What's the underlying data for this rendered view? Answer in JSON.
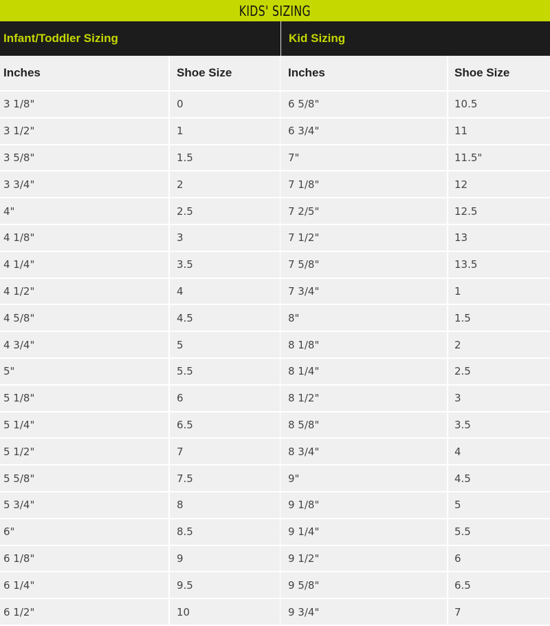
{
  "title": "KIDS' SIZING",
  "sections": {
    "left": "Infant/Toddler Sizing",
    "right": "Kid Sizing"
  },
  "columns": [
    "Inches",
    "Shoe Size",
    "Inches",
    "Shoe Size"
  ],
  "rows": [
    [
      "3 1/8\"",
      "0",
      "6 5/8\"",
      "10.5"
    ],
    [
      "3 1/2\"",
      "1",
      "6 3/4\"",
      "11"
    ],
    [
      "3 5/8\"",
      "1.5",
      "7\"",
      "11.5\""
    ],
    [
      "3 3/4\"",
      "2",
      "7 1/8\"",
      "12"
    ],
    [
      "4\"",
      "2.5",
      "7 2/5\"",
      "12.5"
    ],
    [
      "4 1/8\"",
      "3",
      "7 1/2\"",
      "13"
    ],
    [
      "4 1/4\"",
      "3.5",
      "7 5/8\"",
      "13.5"
    ],
    [
      "4 1/2\"",
      "4",
      "7 3/4\"",
      "1"
    ],
    [
      "4 5/8\"",
      "4.5",
      "8\"",
      "1.5"
    ],
    [
      "4 3/4\"",
      "5",
      "8 1/8\"",
      "2"
    ],
    [
      "5\"",
      "5.5",
      "8 1/4\"",
      "2.5"
    ],
    [
      "5 1/8\"",
      "6",
      "8 1/2\"",
      "3"
    ],
    [
      "5 1/4\"",
      "6.5",
      "8 5/8\"",
      "3.5"
    ],
    [
      "5 1/2\"",
      "7",
      "8 3/4\"",
      "4"
    ],
    [
      "5 5/8\"",
      "7.5",
      "9\"",
      "4.5"
    ],
    [
      "5 3/4\"",
      "8",
      "9 1/8\"",
      "5"
    ],
    [
      "6\"",
      "8.5",
      "9 1/4\"",
      "5.5"
    ],
    [
      "6 1/8\"",
      "9",
      "9 1/2\"",
      "6"
    ],
    [
      "6 1/4\"",
      "9.5",
      "9 5/8\"",
      "6.5"
    ],
    [
      "6 1/2\"",
      "10",
      "9 3/4\"",
      "7"
    ]
  ],
  "colors": {
    "accent": "#c5d800",
    "header_bg": "#1c1c1c",
    "cell_bg": "#f0f0f0"
  }
}
